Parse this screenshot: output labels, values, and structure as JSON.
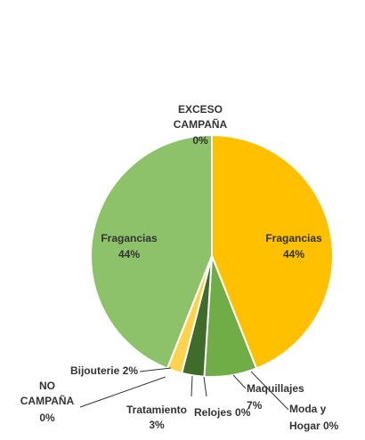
{
  "chart_data": {
    "type": "pie",
    "title": "",
    "slices": [
      {
        "label": "Fragancias",
        "value": 44,
        "value_text": "44%",
        "color": "#FFC000"
      },
      {
        "label": "Maquillajes",
        "value": 7,
        "value_text": "7%",
        "color": "#70AD47"
      },
      {
        "label": "Moda y Hogar",
        "value": 0,
        "value_text": "0%",
        "color": "#A9D18E"
      },
      {
        "label": "Relojes",
        "value": 0,
        "value_text": "0%",
        "color": "#548235"
      },
      {
        "label": "Tratamiento",
        "value": 3,
        "value_text": "3%",
        "color": "#3F6B2B"
      },
      {
        "label": "NO CAMPAÑA",
        "value": 0,
        "value_text": "0%",
        "color": "#9DC3E6"
      },
      {
        "label": "Bijouterie",
        "value": 2,
        "value_text": "2%",
        "color": "#FFD34D"
      },
      {
        "label": "Fragancias",
        "value": 44,
        "value_text": "44%",
        "color": "#8DC26A"
      },
      {
        "label": "EXCESO CAMPAÑA",
        "value": 0,
        "value_text": "0%",
        "color": "#FFE699"
      }
    ]
  }
}
